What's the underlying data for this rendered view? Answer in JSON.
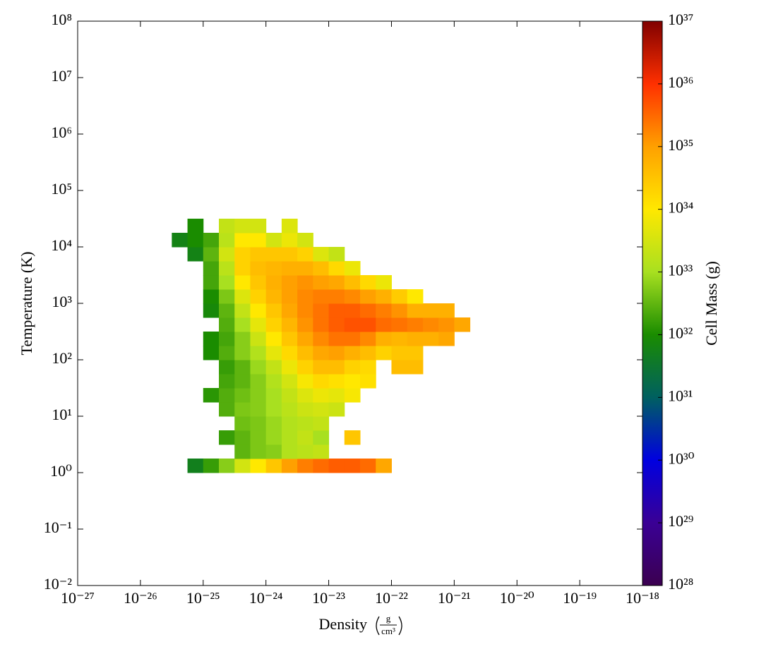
{
  "chart_data": {
    "type": "heatmap",
    "xlabel": "Density",
    "xunit": {
      "numerator": "g",
      "denominator": "cm³"
    },
    "ylabel": "Temperature  (K)",
    "colorbar_label": "Cell Mass  (g)",
    "xscale": "log",
    "yscale": "log",
    "zscale": "log",
    "xlim": [
      1e-27,
      1e-18
    ],
    "ylim": [
      0.01,
      100000000.0
    ],
    "zlim": [
      1e+28,
      1e+37
    ],
    "xticks": [
      {
        "value": 1e-27,
        "label": "10⁻²⁷"
      },
      {
        "value": 1e-26,
        "label": "10⁻²⁶"
      },
      {
        "value": 1e-25,
        "label": "10⁻²⁵"
      },
      {
        "value": 1e-24,
        "label": "10⁻²⁴"
      },
      {
        "value": 1e-23,
        "label": "10⁻²³"
      },
      {
        "value": 1e-22,
        "label": "10⁻²²"
      },
      {
        "value": 1e-21,
        "label": "10⁻²¹"
      },
      {
        "value": 1e-20,
        "label": "10⁻²⁰"
      },
      {
        "value": 1e-19,
        "label": "10⁻¹⁹"
      },
      {
        "value": 1e-18,
        "label": "10⁻¹⁸"
      }
    ],
    "yticks": [
      {
        "value": 0.01,
        "label": "10⁻²"
      },
      {
        "value": 0.1,
        "label": "10⁻¹"
      },
      {
        "value": 1,
        "label": "10⁰"
      },
      {
        "value": 10,
        "label": "10¹"
      },
      {
        "value": 100,
        "label": "10²"
      },
      {
        "value": 1000,
        "label": "10³"
      },
      {
        "value": 10000,
        "label": "10⁴"
      },
      {
        "value": 100000,
        "label": "10⁵"
      },
      {
        "value": 1000000,
        "label": "10⁶"
      },
      {
        "value": 10000000,
        "label": "10⁷"
      },
      {
        "value": 100000000,
        "label": "10⁸"
      }
    ],
    "zticks": [
      {
        "value": 1e+28,
        "label": "10²⁸"
      },
      {
        "value": 1e+29,
        "label": "10²⁹"
      },
      {
        "value": 1e+30,
        "label": "10³⁰"
      },
      {
        "value": 1e+31,
        "label": "10³¹"
      },
      {
        "value": 1e+32,
        "label": "10³²"
      },
      {
        "value": 1e+33,
        "label": "10³³"
      },
      {
        "value": 1e+34,
        "label": "10³⁴"
      },
      {
        "value": 1e+35,
        "label": "10³⁵"
      },
      {
        "value": 1e+36,
        "label": "10³⁶"
      },
      {
        "value": 1e+37,
        "label": "10³⁷"
      }
    ],
    "colormap": [
      "#3b0050",
      "#3a0095",
      "#0000e0",
      "#006060",
      "#1a8c00",
      "#a8e020",
      "#ffe800",
      "#ffa000",
      "#ff3000",
      "#800000"
    ],
    "xbins": [
      3.162e-26,
      5.623e-26,
      1e-25,
      1.778e-25,
      3.162e-25,
      5.623e-25,
      1e-24,
      1.778e-24,
      3.162e-24,
      5.623e-24,
      1e-23,
      1.778e-23,
      3.162e-23,
      5.623e-23,
      1e-22,
      1.778e-22,
      3.162e-22,
      5.623e-22,
      1e-21,
      1.778e-21
    ],
    "ybins": [
      1,
      1.778,
      3.162,
      5.623,
      10,
      17.78,
      31.62,
      56.23,
      100,
      177.8,
      316.2,
      562.3,
      1000,
      1778,
      3162,
      5623,
      10000,
      17780,
      31620
    ],
    "values": [
      [
        null,
        5e+31,
        1.6e+32,
        6e+32,
        3e+33,
        1e+34,
        3e+34,
        1e+35,
        2e+35,
        3e+35,
        4e+35,
        4e+35,
        3e+35,
        8e+34,
        null,
        null,
        null,
        null,
        null
      ],
      [
        null,
        null,
        null,
        null,
        3e+32,
        5e+32,
        6e+32,
        1.3e+33,
        1.6e+33,
        2e+33,
        null,
        null,
        null,
        null,
        null,
        null,
        null,
        null,
        null
      ],
      [
        null,
        null,
        null,
        1.6e+32,
        3e+32,
        5e+32,
        8e+32,
        1.3e+33,
        2e+33,
        1e+33,
        null,
        3e+34,
        null,
        null,
        null,
        null,
        null,
        null,
        null
      ],
      [
        null,
        null,
        null,
        null,
        4e+32,
        5e+32,
        8e+32,
        1.3e+33,
        1.6e+33,
        2e+33,
        null,
        null,
        null,
        null,
        null,
        null,
        null,
        null,
        null
      ],
      [
        null,
        null,
        null,
        2.5e+32,
        5e+32,
        6e+32,
        1e+33,
        1.6e+33,
        2.5e+33,
        3e+33,
        2.5e+33,
        null,
        null,
        null,
        null,
        null,
        null,
        null,
        null
      ],
      [
        null,
        null,
        1.3e+32,
        2.5e+32,
        4e+32,
        6e+32,
        1e+33,
        2e+33,
        4e+33,
        6e+33,
        5e+33,
        8e+33,
        null,
        null,
        null,
        null,
        null,
        null,
        null
      ],
      [
        null,
        null,
        null,
        2e+32,
        3e+32,
        6e+32,
        1.3e+33,
        3e+33,
        8e+33,
        1.6e+34,
        1.3e+34,
        1e+34,
        1.3e+34,
        null,
        null,
        null,
        null,
        null,
        null
      ],
      [
        null,
        null,
        null,
        1.6e+32,
        3e+32,
        8e+32,
        2e+33,
        6e+33,
        2e+34,
        4e+34,
        4e+34,
        2e+34,
        1.6e+34,
        null,
        4e+34,
        4e+34,
        null,
        null,
        null
      ],
      [
        null,
        null,
        1e+32,
        2.5e+32,
        6e+32,
        1.3e+33,
        5e+33,
        1.6e+34,
        4e+34,
        8e+34,
        1e+35,
        6e+34,
        4e+34,
        2e+34,
        3e+34,
        3e+34,
        null,
        null,
        null
      ],
      [
        null,
        null,
        1e+32,
        2e+32,
        6e+32,
        2.5e+33,
        1e+34,
        3e+34,
        8e+34,
        1.6e+35,
        2.5e+35,
        2.5e+35,
        1.6e+35,
        6e+34,
        5e+34,
        6e+34,
        6e+34,
        8e+34,
        null
      ],
      [
        null,
        null,
        null,
        2.5e+32,
        1e+33,
        5e+33,
        2e+34,
        5e+34,
        1.3e+35,
        2.5e+35,
        4e+35,
        5e+35,
        5e+35,
        3e+35,
        2.5e+35,
        2e+35,
        1.6e+35,
        1.3e+35,
        8e+34
      ],
      [
        null,
        null,
        8e+31,
        3e+32,
        2e+33,
        1e+34,
        3e+34,
        8e+34,
        1.6e+35,
        2.5e+35,
        4e+35,
        4e+35,
        3e+35,
        2e+35,
        1.3e+35,
        6e+34,
        6e+34,
        6e+34,
        null
      ],
      [
        null,
        null,
        1e+32,
        5e+32,
        4e+33,
        2e+34,
        5e+34,
        1e+35,
        1.6e+35,
        2e+35,
        2e+35,
        1.6e+35,
        1e+35,
        6e+34,
        2.5e+34,
        1e+34,
        null,
        null,
        null
      ],
      [
        null,
        null,
        2e+32,
        1e+33,
        1e+34,
        3e+34,
        6e+34,
        1e+35,
        1.3e+35,
        1e+35,
        8e+34,
        4e+34,
        1.6e+34,
        6e+33,
        null,
        null,
        null,
        null,
        null
      ],
      [
        null,
        null,
        2e+32,
        1.6e+33,
        2e+34,
        4e+34,
        5e+34,
        6e+34,
        6e+34,
        4e+34,
        1.6e+34,
        6e+33,
        null,
        null,
        null,
        null,
        null,
        null,
        null
      ],
      [
        null,
        6e+31,
        3e+32,
        3e+33,
        2e+34,
        3e+34,
        3e+34,
        3e+34,
        2e+34,
        4e+33,
        2e+33,
        null,
        null,
        null,
        null,
        null,
        null,
        null,
        null
      ],
      [
        6e+31,
        1e+32,
        2e+32,
        1.6e+33,
        1e+34,
        1e+34,
        3e+33,
        6e+33,
        3e+33,
        null,
        null,
        null,
        null,
        null,
        null,
        null,
        null,
        null,
        null
      ],
      [
        null,
        1e+32,
        null,
        2e+33,
        3e+33,
        3e+33,
        null,
        4e+33,
        null,
        null,
        null,
        null,
        null,
        null,
        null,
        null,
        null,
        null,
        null
      ]
    ]
  }
}
